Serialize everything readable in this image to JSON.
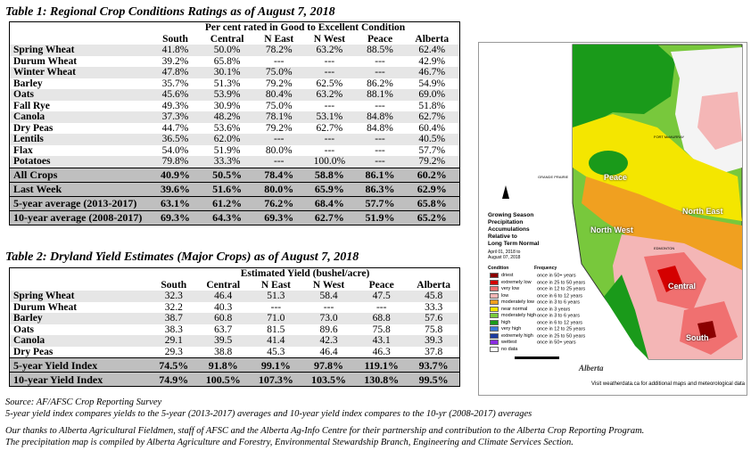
{
  "table1": {
    "title": "Table 1: Regional Crop Conditions Ratings as of August 7, 2018",
    "subheader": "Per cent rated in Good to Excellent Condition",
    "columns": [
      "South",
      "Central",
      "N East",
      "N West",
      "Peace",
      "Alberta"
    ],
    "rows": [
      {
        "crop": "Spring Wheat",
        "v": [
          "41.8%",
          "50.0%",
          "78.2%",
          "63.2%",
          "88.5%",
          "62.4%"
        ]
      },
      {
        "crop": "Durum Wheat",
        "v": [
          "39.2%",
          "65.8%",
          "---",
          "---",
          "---",
          "42.9%"
        ]
      },
      {
        "crop": "Winter Wheat",
        "v": [
          "47.8%",
          "30.1%",
          "75.0%",
          "---",
          "---",
          "46.7%"
        ]
      },
      {
        "crop": "Barley",
        "v": [
          "35.7%",
          "51.3%",
          "79.2%",
          "62.5%",
          "86.2%",
          "54.9%"
        ]
      },
      {
        "crop": "Oats",
        "v": [
          "45.6%",
          "53.9%",
          "80.4%",
          "63.2%",
          "88.1%",
          "69.0%"
        ]
      },
      {
        "crop": "Fall Rye",
        "v": [
          "49.3%",
          "30.9%",
          "75.0%",
          "---",
          "---",
          "51.8%"
        ]
      },
      {
        "crop": "Canola",
        "v": [
          "37.3%",
          "48.2%",
          "78.1%",
          "53.1%",
          "84.8%",
          "62.7%"
        ]
      },
      {
        "crop": "Dry Peas",
        "v": [
          "44.7%",
          "53.6%",
          "79.2%",
          "62.7%",
          "84.8%",
          "60.4%"
        ]
      },
      {
        "crop": "Lentils",
        "v": [
          "36.5%",
          "62.0%",
          "---",
          "---",
          "---",
          "40.5%"
        ]
      },
      {
        "crop": "Flax",
        "v": [
          "54.0%",
          "51.9%",
          "80.0%",
          "---",
          "---",
          "57.7%"
        ]
      },
      {
        "crop": "Potatoes",
        "v": [
          "79.8%",
          "33.3%",
          "---",
          "100.0%",
          "---",
          "79.2%"
        ]
      }
    ],
    "summary": [
      {
        "crop": "All Crops",
        "v": [
          "40.9%",
          "50.5%",
          "78.4%",
          "58.8%",
          "86.1%",
          "60.2%"
        ]
      },
      {
        "crop": "Last Week",
        "v": [
          "39.6%",
          "51.6%",
          "80.0%",
          "65.9%",
          "86.3%",
          "62.9%"
        ]
      },
      {
        "crop": "5-year average (2013-2017)",
        "v": [
          "63.1%",
          "61.2%",
          "76.2%",
          "68.4%",
          "57.7%",
          "65.8%"
        ]
      },
      {
        "crop": "10-year average (2008-2017)",
        "v": [
          "69.3%",
          "64.3%",
          "69.3%",
          "62.7%",
          "51.9%",
          "65.2%"
        ]
      }
    ]
  },
  "table2": {
    "title": "Table 2: Dryland Yield Estimates (Major Crops) as of August 7, 2018",
    "subheader": "Estimated Yield (bushel/acre)",
    "columns": [
      "South",
      "Central",
      "N East",
      "N West",
      "Peace",
      "Alberta"
    ],
    "rows": [
      {
        "crop": "Spring Wheat",
        "v": [
          "32.3",
          "46.4",
          "51.3",
          "58.4",
          "47.5",
          "45.8"
        ]
      },
      {
        "crop": "Durum Wheat",
        "v": [
          "32.2",
          "40.3",
          "---",
          "---",
          "---",
          "33.3"
        ]
      },
      {
        "crop": "Barley",
        "v": [
          "38.7",
          "60.8",
          "71.0",
          "73.0",
          "68.8",
          "57.6"
        ]
      },
      {
        "crop": "Oats",
        "v": [
          "38.3",
          "63.7",
          "81.5",
          "89.6",
          "75.8",
          "75.8"
        ]
      },
      {
        "crop": "Canola",
        "v": [
          "29.1",
          "39.5",
          "41.4",
          "42.3",
          "43.1",
          "39.3"
        ]
      },
      {
        "crop": "Dry Peas",
        "v": [
          "29.3",
          "38.8",
          "45.3",
          "46.4",
          "46.3",
          "37.8"
        ]
      }
    ],
    "summary": [
      {
        "crop": "5-year Yield Index",
        "v": [
          "74.5%",
          "91.8%",
          "99.1%",
          "97.8%",
          "119.1%",
          "93.7%"
        ]
      },
      {
        "crop": "10-year Yield Index",
        "v": [
          "74.9%",
          "100.5%",
          "107.3%",
          "103.5%",
          "130.8%",
          "99.5%"
        ]
      }
    ]
  },
  "notes": {
    "source": "Source: AF/AFSC Crop Reporting Survey",
    "index_note": "5-year yield index compares yields to the 5-year (2013-2017) averages and 10-year yield index compares to the 10-yr (2008-2017) averages",
    "thanks": "Our thanks to Alberta Agricultural Fieldmen, staff of AFSC and the Alberta Ag-Info Centre for their partnership and contribution to the Alberta Crop Reporting Program.",
    "compiled": "The precipitation map is compiled by Alberta Agriculture and Forestry, Environmental Stewardship Branch, Engineering and Climate Services Section."
  },
  "map": {
    "title_lines": [
      "Growing Season",
      "Precipitation",
      "Accumulations",
      "Relative to",
      "Long Term Normal"
    ],
    "dates": [
      "April 01, 2018 to",
      "August 07, 2018"
    ],
    "legend_header": [
      "Condition",
      "Frequency"
    ],
    "legend": [
      {
        "label": "driest",
        "freq": "once in 50+ years",
        "color": "#8b0000"
      },
      {
        "label": "extremely low",
        "freq": "once in 25 to 50 years",
        "color": "#d40000"
      },
      {
        "label": "very low",
        "freq": "once in 12 to 25 years",
        "color": "#f07070"
      },
      {
        "label": "low",
        "freq": "once in 6 to 12 years",
        "color": "#f4b6b6"
      },
      {
        "label": "moderately low",
        "freq": "once in 3 to 6 years",
        "color": "#f0a020"
      },
      {
        "label": "near normal",
        "freq": "once in 3 years",
        "color": "#f4e600"
      },
      {
        "label": "moderately high",
        "freq": "once in 3 to 6 years",
        "color": "#78c83c"
      },
      {
        "label": "high",
        "freq": "once in 6 to 12 years",
        "color": "#1a9a1a"
      },
      {
        "label": "very high",
        "freq": "once in 12 to 25 years",
        "color": "#3c78d8"
      },
      {
        "label": "extremely high",
        "freq": "once in 25 to 50 years",
        "color": "#1c3ca0"
      },
      {
        "label": "wettest",
        "freq": "once in 50+ years",
        "color": "#8a2be2"
      },
      {
        "label": "no data",
        "freq": "",
        "color": "#ffffff"
      }
    ],
    "regions": [
      "Peace",
      "North East",
      "North West",
      "Central",
      "South"
    ],
    "cities": [
      "FORT McMURRAY",
      "GRANDE PRAIRIE",
      "EDMONTON"
    ],
    "footer": "Visit weatherdata.ca for additional maps and meteorological data",
    "logo": "Alberta",
    "colors": {
      "green": "#1a9a1a",
      "lightgreen": "#78c83c",
      "yellow": "#f4e600",
      "orange": "#f0a020",
      "pink": "#f4b6b6",
      "red": "#d40000",
      "darkred": "#8b0000"
    }
  }
}
